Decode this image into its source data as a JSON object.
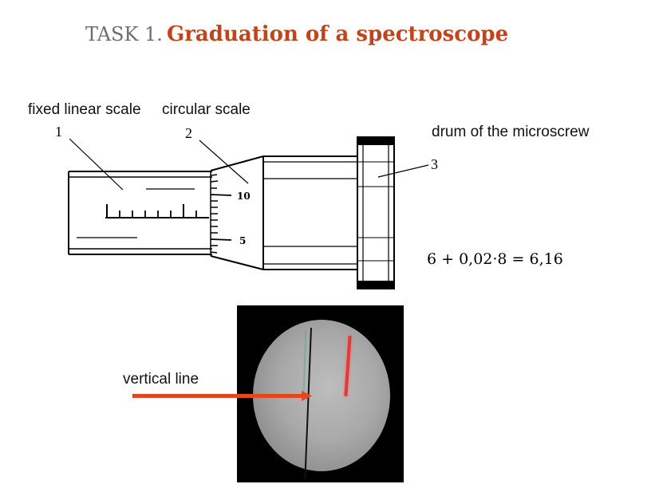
{
  "title": {
    "prefix": "TASK 1.",
    "main": "Graduation of a spectroscope"
  },
  "labels": {
    "fixed_scale": "fixed linear scale",
    "circular_scale": "circular scale",
    "drum": "drum of the microscrew",
    "vertical_line": "vertical line"
  },
  "callouts": {
    "n1": "1",
    "n2": "2",
    "n3": "3"
  },
  "drum_scale": {
    "tick_10": "10",
    "tick_5": "5"
  },
  "formula": "6 + 0,02·8 = 6,16",
  "colors": {
    "title_accent": "#c0441c",
    "arrow": "#e0491d",
    "red_line": "#e23a3a"
  }
}
